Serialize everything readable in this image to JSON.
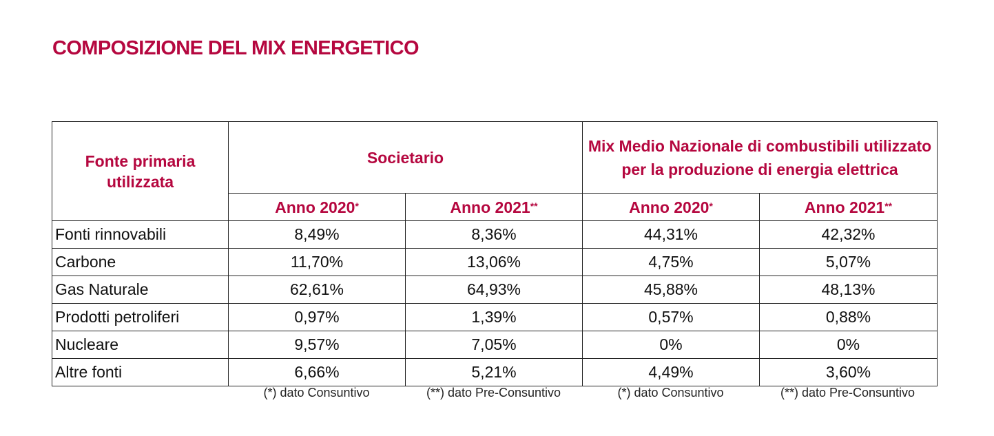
{
  "title": "COMPOSIZIONE DEL MIX ENERGETICO",
  "header": {
    "fonte": "Fonte primaria utilizzata",
    "societario": "Societario",
    "nazionale": "Mix Medio Nazionale di combustibili utilizzato per la produzione di energia elettrica",
    "years": [
      {
        "label": "Anno 2020",
        "mark": "*"
      },
      {
        "label": "Anno 2021",
        "mark": "**"
      },
      {
        "label": "Anno 2020",
        "mark": "*"
      },
      {
        "label": "Anno 2021",
        "mark": "**"
      }
    ]
  },
  "rows": [
    {
      "fonte": "Fonti rinnovabili",
      "values": [
        "8,49%",
        "8,36%",
        "44,31%",
        "42,32%"
      ]
    },
    {
      "fonte": "Carbone",
      "values": [
        "11,70%",
        "13,06%",
        "4,75%",
        "5,07%"
      ]
    },
    {
      "fonte": "Gas Naturale",
      "values": [
        "62,61%",
        "64,93%",
        "45,88%",
        "48,13%"
      ]
    },
    {
      "fonte": "Prodotti petroliferi",
      "values": [
        "0,97%",
        "1,39%",
        "0,57%",
        "0,88%"
      ]
    },
    {
      "fonte": "Nucleare",
      "values": [
        "9,57%",
        "7,05%",
        "0%",
        "0%"
      ]
    },
    {
      "fonte": "Altre fonti",
      "values": [
        "6,66%",
        "5,21%",
        "4,49%",
        "3,60%"
      ]
    }
  ],
  "notes": [
    "(*) dato Consuntivo",
    "(**) dato Pre-Consuntivo",
    "(*) dato Consuntivo",
    "(**) dato Pre-Consuntivo"
  ],
  "colors": {
    "accent": "#b5073f",
    "border": "#222222"
  }
}
